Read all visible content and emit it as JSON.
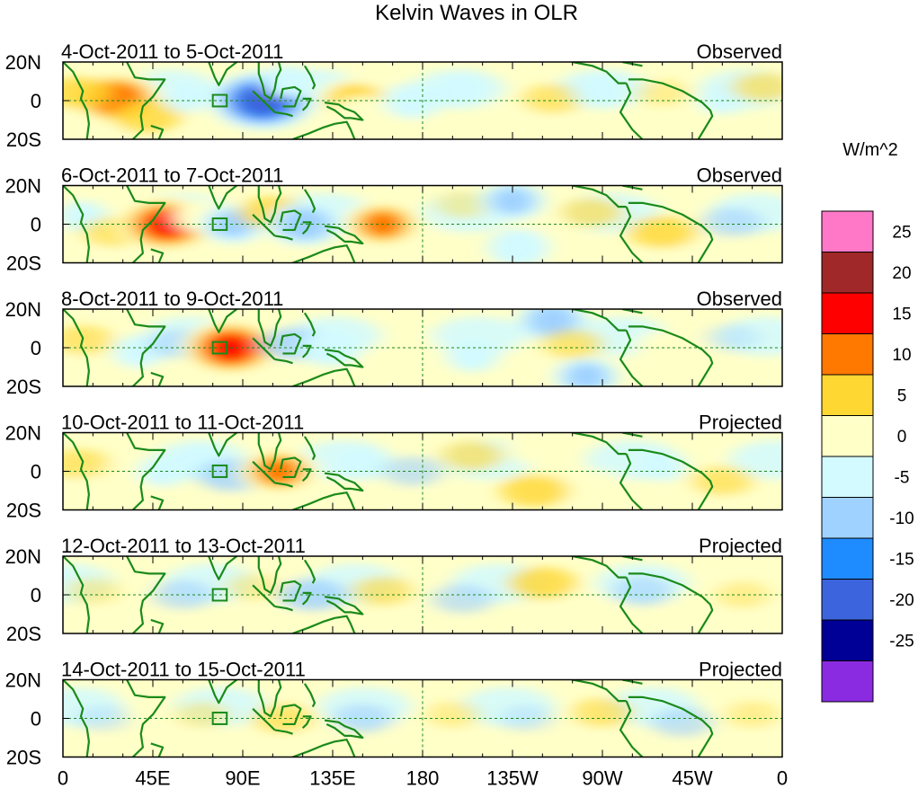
{
  "chart_data": {
    "type": "heatmap",
    "title": "Kelvin Waves in OLR",
    "units": "W/m^2",
    "variable": "OLR anomaly (Kelvin-wave filtered)",
    "x_ticks": [
      "0",
      "45E",
      "90E",
      "135E",
      "180",
      "135W",
      "90W",
      "45W",
      "0"
    ],
    "x_tick_lon": [
      0,
      45,
      90,
      135,
      180,
      225,
      270,
      315,
      360
    ],
    "xlim": [
      0,
      360
    ],
    "y_ticks": [
      "20N",
      "0",
      "20S"
    ],
    "y_tick_lat": [
      20,
      0,
      -20
    ],
    "ylim": [
      -20,
      20
    ],
    "colorbar": {
      "labels": [
        "25",
        "20",
        "15",
        "10",
        "5",
        "0",
        "-5",
        "-10",
        "-15",
        "-20",
        "-25"
      ],
      "levels": [
        -25,
        -20,
        -15,
        -10,
        -5,
        0,
        5,
        10,
        15,
        20,
        25
      ],
      "colors": [
        "#8a2be2",
        "#000096",
        "#3c64dc",
        "#1e8cff",
        "#a0d2ff",
        "#d2faff",
        "#ffffc8",
        "#ffd732",
        "#ff7800",
        "#ff0000",
        "#a02828",
        "#ff78c8"
      ]
    },
    "panels": [
      {
        "date_range": "4-Oct-2011 to 5-Oct-2011",
        "status": "Observed",
        "anomalies": [
          {
            "lon": 27,
            "lat": 1,
            "value": 19
          },
          {
            "lon": 8,
            "lat": 4,
            "value": 4
          },
          {
            "lon": 42,
            "lat": -8,
            "value": 4
          },
          {
            "lon": 62,
            "lat": 2,
            "value": -5
          },
          {
            "lon": 100,
            "lat": 0,
            "value": -23
          },
          {
            "lon": 112,
            "lat": 10,
            "value": -6
          },
          {
            "lon": 146,
            "lat": 0,
            "value": 14
          },
          {
            "lon": 150,
            "lat": -7,
            "value": 9
          },
          {
            "lon": 175,
            "lat": 0,
            "value": -8
          },
          {
            "lon": 200,
            "lat": 6,
            "value": -5
          },
          {
            "lon": 245,
            "lat": 1,
            "value": 3
          },
          {
            "lon": 268,
            "lat": 5,
            "value": -6
          },
          {
            "lon": 300,
            "lat": 4,
            "value": 2
          },
          {
            "lon": 330,
            "lat": 1,
            "value": -5
          },
          {
            "lon": 350,
            "lat": 7,
            "value": 3
          }
        ]
      },
      {
        "date_range": "6-Oct-2011 to 7-Oct-2011",
        "status": "Observed",
        "anomalies": [
          {
            "lon": 10,
            "lat": 4,
            "value": -5
          },
          {
            "lon": 25,
            "lat": -4,
            "value": 3
          },
          {
            "lon": 52,
            "lat": 0,
            "value": 21
          },
          {
            "lon": 68,
            "lat": 4,
            "value": 6
          },
          {
            "lon": 85,
            "lat": 0,
            "value": -10
          },
          {
            "lon": 105,
            "lat": 6,
            "value": 4
          },
          {
            "lon": 121,
            "lat": 0,
            "value": -13
          },
          {
            "lon": 160,
            "lat": 0,
            "value": 15
          },
          {
            "lon": 200,
            "lat": 10,
            "value": 2
          },
          {
            "lon": 225,
            "lat": 12,
            "value": -10
          },
          {
            "lon": 228,
            "lat": -12,
            "value": -9
          },
          {
            "lon": 265,
            "lat": 6,
            "value": 3
          },
          {
            "lon": 300,
            "lat": -4,
            "value": 4
          },
          {
            "lon": 335,
            "lat": 1,
            "value": -3
          }
        ]
      },
      {
        "date_range": "8-Oct-2011 to 9-Oct-2011",
        "status": "Observed",
        "anomalies": [
          {
            "lon": 10,
            "lat": 4,
            "value": 3
          },
          {
            "lon": 38,
            "lat": -2,
            "value": -6
          },
          {
            "lon": 58,
            "lat": 2,
            "value": -3
          },
          {
            "lon": 84,
            "lat": 0,
            "value": 21
          },
          {
            "lon": 116,
            "lat": 2,
            "value": -4
          },
          {
            "lon": 134,
            "lat": 0,
            "value": -9
          },
          {
            "lon": 175,
            "lat": 0,
            "value": 6
          },
          {
            "lon": 205,
            "lat": -4,
            "value": -6
          },
          {
            "lon": 245,
            "lat": 14,
            "value": -12
          },
          {
            "lon": 262,
            "lat": -15,
            "value": -10
          },
          {
            "lon": 255,
            "lat": 2,
            "value": 3
          },
          {
            "lon": 300,
            "lat": 0,
            "value": 7
          },
          {
            "lon": 335,
            "lat": 5,
            "value": -2
          }
        ]
      },
      {
        "date_range": "10-Oct-2011 to 11-Oct-2011",
        "status": "Projected",
        "anomalies": [
          {
            "lon": 8,
            "lat": 4,
            "value": 3
          },
          {
            "lon": 50,
            "lat": 0,
            "value": -5
          },
          {
            "lon": 68,
            "lat": 5,
            "value": -6
          },
          {
            "lon": 85,
            "lat": -2,
            "value": -4
          },
          {
            "lon": 108,
            "lat": 0,
            "value": 15
          },
          {
            "lon": 150,
            "lat": 4,
            "value": -6
          },
          {
            "lon": 175,
            "lat": 0,
            "value": -3
          },
          {
            "lon": 205,
            "lat": 8,
            "value": 3
          },
          {
            "lon": 235,
            "lat": 12,
            "value": 6
          },
          {
            "lon": 236,
            "lat": -10,
            "value": 4
          },
          {
            "lon": 268,
            "lat": -8,
            "value": 6
          },
          {
            "lon": 300,
            "lat": 3,
            "value": -5
          },
          {
            "lon": 330,
            "lat": -5,
            "value": 3
          }
        ]
      },
      {
        "date_range": "12-Oct-2011 to 13-Oct-2011",
        "status": "Projected",
        "anomalies": [
          {
            "lon": 15,
            "lat": 2,
            "value": 2
          },
          {
            "lon": 60,
            "lat": 0,
            "value": -3
          },
          {
            "lon": 95,
            "lat": 4,
            "value": 2
          },
          {
            "lon": 125,
            "lat": 0,
            "value": -4
          },
          {
            "lon": 160,
            "lat": 2,
            "value": 3
          },
          {
            "lon": 200,
            "lat": -2,
            "value": -3
          },
          {
            "lon": 240,
            "lat": 6,
            "value": 4
          },
          {
            "lon": 262,
            "lat": -6,
            "value": 5
          },
          {
            "lon": 290,
            "lat": 2,
            "value": -3
          },
          {
            "lon": 340,
            "lat": 0,
            "value": 2
          }
        ]
      },
      {
        "date_range": "14-Oct-2011 to 15-Oct-2011",
        "status": "Projected",
        "anomalies": [
          {
            "lon": 20,
            "lat": 0,
            "value": -2
          },
          {
            "lon": 70,
            "lat": 2,
            "value": 2
          },
          {
            "lon": 110,
            "lat": 0,
            "value": 3
          },
          {
            "lon": 150,
            "lat": 0,
            "value": -3
          },
          {
            "lon": 195,
            "lat": 2,
            "value": 2
          },
          {
            "lon": 232,
            "lat": 0,
            "value": -2
          },
          {
            "lon": 270,
            "lat": 3,
            "value": 3
          },
          {
            "lon": 310,
            "lat": -2,
            "value": -3
          },
          {
            "lon": 345,
            "lat": 2,
            "value": 2
          }
        ]
      }
    ]
  }
}
